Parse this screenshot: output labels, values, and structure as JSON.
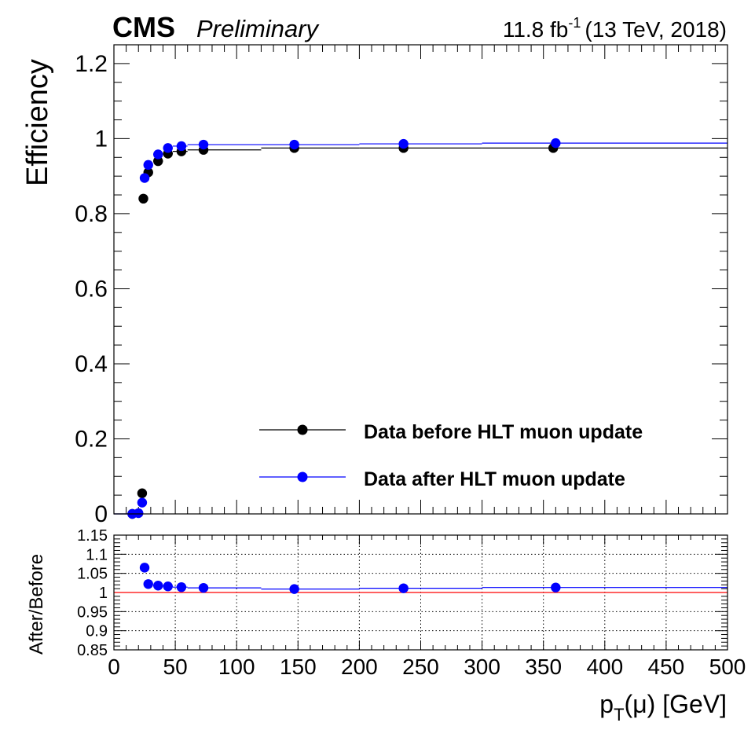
{
  "header": {
    "experiment": "CMS",
    "status": "Preliminary",
    "lumi_value": "11.8 fb",
    "lumi_exp": "-1",
    "lumi_energy": "(13 TeV, 2018)"
  },
  "chart_data": [
    {
      "type": "scatter",
      "ylabel": "Efficiency",
      "ylim": [
        0,
        1.25
      ],
      "xlim": [
        0,
        500
      ],
      "yticks": [
        "0",
        "0.2",
        "0.4",
        "0.6",
        "0.8",
        "1",
        "1.2"
      ],
      "legend_position": "bottom-right",
      "grid": false,
      "series": [
        {
          "name": "Data before HLT muon update",
          "color": "#000000",
          "points": [
            {
              "x": 5,
              "xlo": 0,
              "xhi": 10,
              "y": 0.0
            },
            {
              "x": 15,
              "xlo": 10,
              "xhi": 20,
              "y": 0.0
            },
            {
              "x": 23,
              "xlo": 21,
              "xhi": 25,
              "y": 0.055
            },
            {
              "x": 24,
              "xlo": 22,
              "xhi": 26,
              "y": 0.84
            },
            {
              "x": 28,
              "xlo": 26,
              "xhi": 30,
              "y": 0.91
            },
            {
              "x": 36,
              "xlo": 32,
              "xhi": 40,
              "y": 0.94
            },
            {
              "x": 44,
              "xlo": 40,
              "xhi": 48,
              "y": 0.96
            },
            {
              "x": 55,
              "xlo": 48,
              "xhi": 60,
              "y": 0.966
            },
            {
              "x": 73,
              "xlo": 60,
              "xhi": 120,
              "y": 0.97
            },
            {
              "x": 147,
              "xlo": 120,
              "xhi": 200,
              "y": 0.975
            },
            {
              "x": 236,
              "xlo": 200,
              "xhi": 300,
              "y": 0.975
            },
            {
              "x": 358,
              "xlo": 300,
              "xhi": 500,
              "y": 0.975
            }
          ]
        },
        {
          "name": "Data after HLT muon update",
          "color": "#0000ff",
          "points": [
            {
              "x": 5,
              "xlo": 0,
              "xhi": 10,
              "y": 0.0
            },
            {
              "x": 15,
              "xlo": 10,
              "xhi": 20,
              "y": 0.0
            },
            {
              "x": 20,
              "xlo": 18,
              "xhi": 22,
              "y": 0.002
            },
            {
              "x": 23,
              "xlo": 21,
              "xhi": 25,
              "y": 0.03
            },
            {
              "x": 25,
              "xlo": 23,
              "xhi": 27,
              "y": 0.895
            },
            {
              "x": 28,
              "xlo": 26,
              "xhi": 30,
              "y": 0.93
            },
            {
              "x": 36,
              "xlo": 32,
              "xhi": 40,
              "y": 0.958
            },
            {
              "x": 44,
              "xlo": 40,
              "xhi": 48,
              "y": 0.975
            },
            {
              "x": 55,
              "xlo": 48,
              "xhi": 60,
              "y": 0.98
            },
            {
              "x": 73,
              "xlo": 60,
              "xhi": 120,
              "y": 0.984
            },
            {
              "x": 147,
              "xlo": 120,
              "xhi": 200,
              "y": 0.984
            },
            {
              "x": 236,
              "xlo": 200,
              "xhi": 300,
              "y": 0.986
            },
            {
              "x": 360,
              "xlo": 300,
              "xhi": 500,
              "y": 0.988
            }
          ]
        }
      ]
    },
    {
      "type": "scatter",
      "ylabel": "After/Before",
      "xlabel_main": "p",
      "xlabel_sub": "T",
      "xlabel_rest": "(μ) [GeV]",
      "xlim": [
        0,
        500
      ],
      "ylim": [
        0.85,
        1.15
      ],
      "xticks": [
        "0",
        "50",
        "100",
        "150",
        "200",
        "250",
        "300",
        "350",
        "400",
        "450",
        "500"
      ],
      "yticks": [
        "0.85",
        "0.9",
        "0.95",
        "1",
        "1.05",
        "1.1",
        "1.15"
      ],
      "grid": true,
      "reference_line": {
        "y": 1.0,
        "color": "#ff0000"
      },
      "series": [
        {
          "color": "#0000ff",
          "points": [
            {
              "x": 25,
              "xlo": 23,
              "xhi": 27,
              "y": 1.065
            },
            {
              "x": 28,
              "xlo": 26,
              "xhi": 30,
              "y": 1.022
            },
            {
              "x": 36,
              "xlo": 32,
              "xhi": 40,
              "y": 1.018
            },
            {
              "x": 44,
              "xlo": 40,
              "xhi": 48,
              "y": 1.016
            },
            {
              "x": 55,
              "xlo": 48,
              "xhi": 60,
              "y": 1.014
            },
            {
              "x": 73,
              "xlo": 60,
              "xhi": 120,
              "y": 1.012
            },
            {
              "x": 147,
              "xlo": 120,
              "xhi": 200,
              "y": 1.009
            },
            {
              "x": 236,
              "xlo": 200,
              "xhi": 300,
              "y": 1.011
            },
            {
              "x": 360,
              "xlo": 300,
              "xhi": 500,
              "y": 1.013
            }
          ]
        }
      ]
    }
  ]
}
